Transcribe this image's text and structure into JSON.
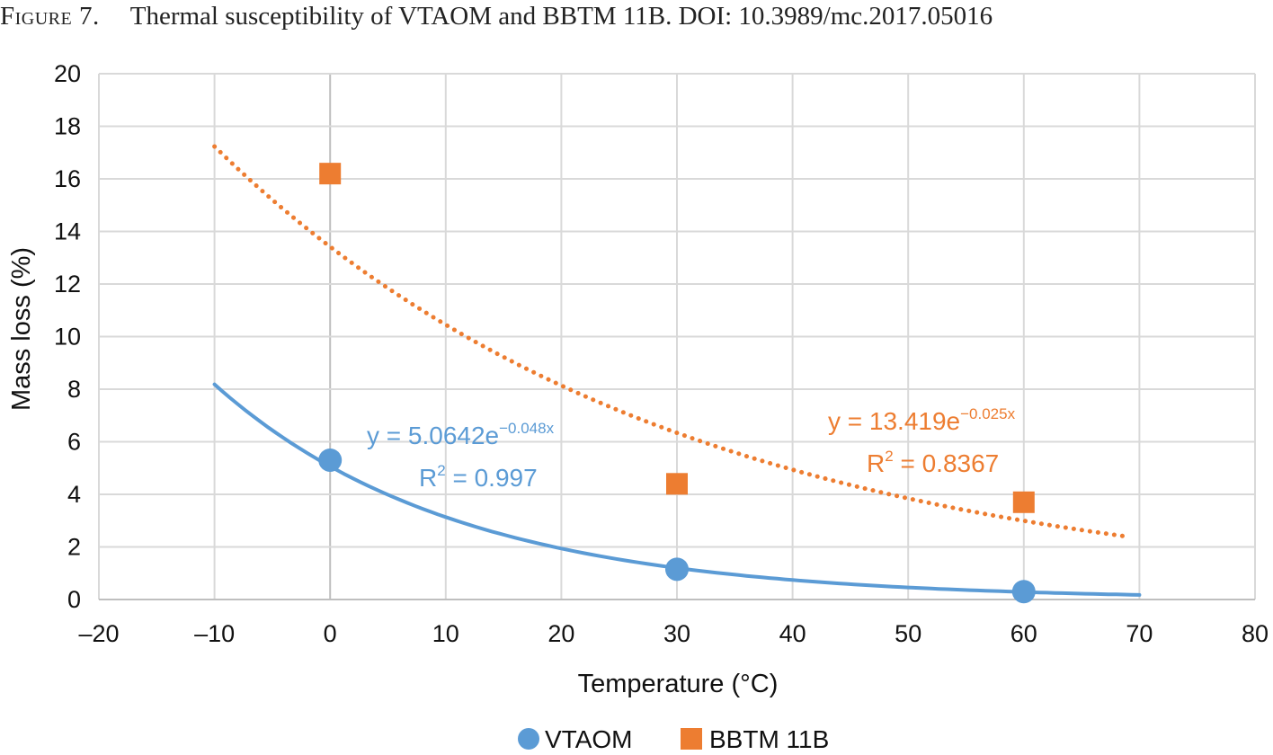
{
  "caption": {
    "label": "Figure 7.",
    "text": "Thermal susceptibility of VTAOM and BBTM 11B. DOI: 10.3989/mc.2017.05016"
  },
  "colors": {
    "vtaom": "#5b9bd5",
    "bbtm": "#ed7d31",
    "grid": "#d9d9d9",
    "zero_axis": "#bfbfbf"
  },
  "chart_data": {
    "type": "scatter",
    "title": "",
    "xlabel": "Temperature (°C)",
    "ylabel": "Mass loss (%)",
    "xlim": [
      -20,
      80
    ],
    "ylim": [
      0,
      20
    ],
    "xticks": [
      -20,
      -10,
      0,
      10,
      20,
      30,
      40,
      50,
      60,
      70,
      80
    ],
    "yticks": [
      0,
      2,
      4,
      6,
      8,
      10,
      12,
      14,
      16,
      18,
      20
    ],
    "xtick_labels": [
      "–20",
      "–10",
      "0",
      "10",
      "20",
      "30",
      "40",
      "50",
      "60",
      "70",
      "80"
    ],
    "ytick_labels": [
      "0",
      "2",
      "4",
      "6",
      "8",
      "10",
      "12",
      "14",
      "16",
      "18",
      "20"
    ],
    "grid": true,
    "legend_position": "bottom",
    "series": [
      {
        "name": "VTAOM",
        "marker": "circle",
        "color": "#5b9bd5",
        "x": [
          0,
          30,
          60
        ],
        "y": [
          5.3,
          1.15,
          0.3
        ],
        "trendline": {
          "type": "exponential",
          "a": 5.0642,
          "b": -0.048,
          "x_range": [
            -10,
            70
          ],
          "style": "solid",
          "equation_base": "y = 5.0642e",
          "equation_exp": "−0.048x",
          "r2_label": "R",
          "r2_sup": "2",
          "r2_value": " = 0.997"
        }
      },
      {
        "name": "BBTM 11B",
        "marker": "square",
        "color": "#ed7d31",
        "x": [
          0,
          30,
          60
        ],
        "y": [
          16.2,
          4.4,
          3.7
        ],
        "trendline": {
          "type": "exponential",
          "a": 13.419,
          "b": -0.025,
          "x_range": [
            -10,
            69
          ],
          "style": "dotted",
          "equation_base": "y = 13.419e",
          "equation_exp": "−0.025x",
          "r2_label": "R",
          "r2_sup": "2",
          "r2_value": " = 0.8367"
        }
      }
    ]
  }
}
